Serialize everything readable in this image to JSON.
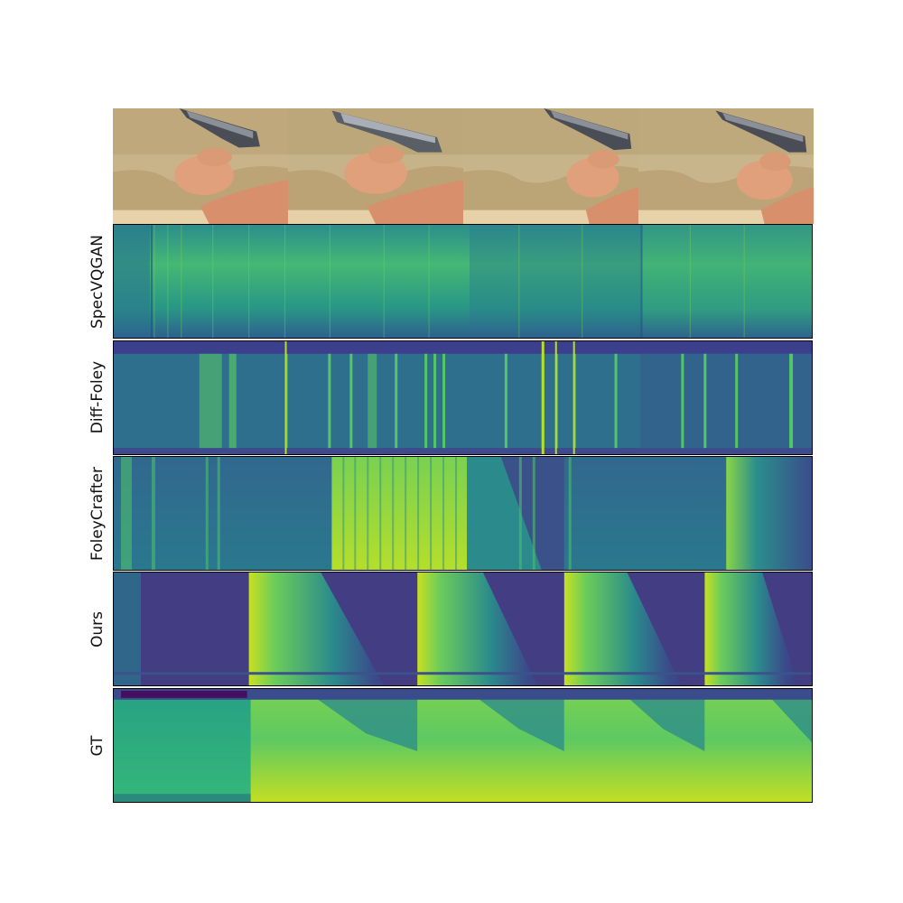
{
  "figure": {
    "frames": [
      {
        "name": "video-frame-1"
      },
      {
        "name": "video-frame-2"
      },
      {
        "name": "video-frame-3"
      },
      {
        "name": "video-frame-4"
      }
    ],
    "rows": [
      {
        "label": "SpecVQGAN"
      },
      {
        "label": "Diff-Foley"
      },
      {
        "label": "FoleyCrafter"
      },
      {
        "label": "Ours"
      },
      {
        "label": "GT"
      }
    ]
  }
}
